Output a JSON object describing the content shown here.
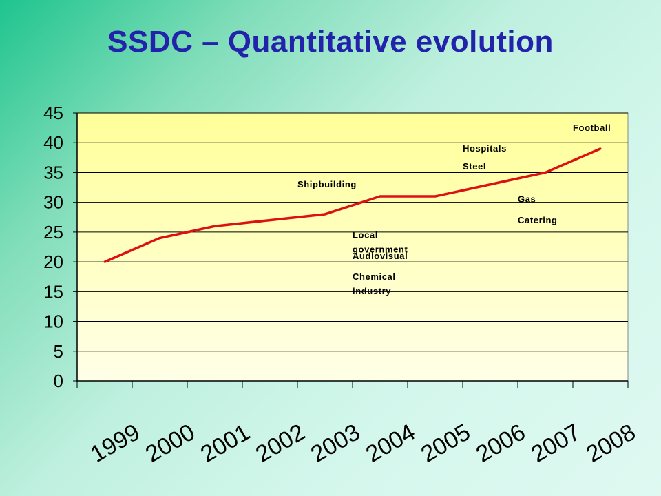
{
  "slide": {
    "title": "SSDC – Quantitative evolution"
  },
  "colors": {
    "title": "#2222aa",
    "plot_fill_top": "#ffff99",
    "plot_fill_bottom": "#ffffe8",
    "line": "#dd1111",
    "grid": "#000000"
  },
  "chart_data": {
    "type": "line",
    "title": "",
    "xlabel": "",
    "ylabel": "",
    "categories": [
      "1999",
      "2000",
      "2001",
      "2002",
      "2003",
      "2004",
      "2005",
      "2006",
      "2007",
      "2008"
    ],
    "series": [
      {
        "values": [
          20,
          24,
          26,
          27,
          28,
          31,
          31,
          33,
          35,
          39
        ]
      }
    ],
    "ylim": [
      0,
      45
    ],
    "yticks": [
      0,
      5,
      10,
      15,
      20,
      25,
      30,
      35,
      40,
      45
    ],
    "grid": true,
    "legend": "none",
    "annotations": [
      {
        "text": "Football",
        "category": "2008",
        "value": 42
      },
      {
        "text": "Hospitals",
        "category": "2006",
        "value": 38.5
      },
      {
        "text": "Steel",
        "category": "2006",
        "value": 35.5
      },
      {
        "text": "Shipbuilding",
        "category": "2003",
        "value": 32.5
      },
      {
        "text": "Gas",
        "category": "2007",
        "value": 30
      },
      {
        "text": "Catering",
        "category": "2007",
        "value": 26.5
      },
      {
        "text": "Local government",
        "category": "2004",
        "value": 24
      },
      {
        "text": "Audiovisual",
        "category": "2004",
        "value": 20.5
      },
      {
        "text": "Chemical industry",
        "category": "2004",
        "value": 17
      }
    ]
  }
}
